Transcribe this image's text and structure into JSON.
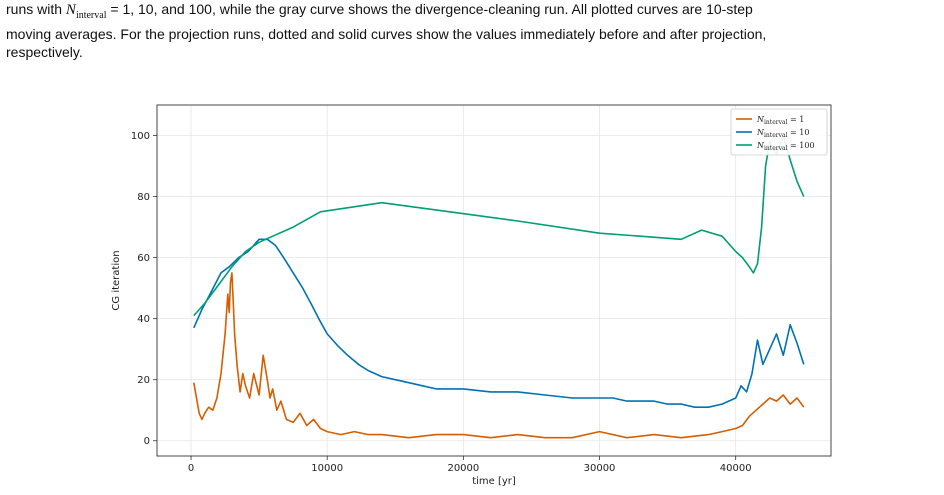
{
  "caption": {
    "line1_pre": "runs with ",
    "line1_sym": "N",
    "line1_sub": "interval",
    "line1_post": " = 1, 10, and 100, while the gray curve shows the divergence-cleaning run. All plotted curves are 10-step",
    "line2": "moving averages. For the projection runs, dotted and solid curves show the values immediately before and after projection,",
    "line3": "respectively."
  },
  "chart_data": {
    "type": "line",
    "xlabel": "time [yr]",
    "ylabel": "CG iteration",
    "xlim": [
      -2500,
      47000
    ],
    "ylim": [
      -5,
      110
    ],
    "xticks": [
      0,
      10000,
      20000,
      30000,
      40000
    ],
    "xtick_labels": [
      "0",
      "10000",
      "20000",
      "30000",
      "40000"
    ],
    "yticks": [
      0,
      20,
      40,
      60,
      80,
      100
    ],
    "ytick_labels": [
      "0",
      "20",
      "40",
      "60",
      "80",
      "100"
    ],
    "grid": true,
    "legend_position": "top-right",
    "series": [
      {
        "name": "N_interval = 1",
        "legend_sym": "N",
        "legend_sub": "interval",
        "legend_val": " = 1",
        "color": "#d55e00",
        "x": [
          200,
          400,
          600,
          800,
          1000,
          1300,
          1600,
          1900,
          2200,
          2500,
          2700,
          2800,
          2900,
          3000,
          3100,
          3200,
          3400,
          3600,
          3800,
          4000,
          4300,
          4600,
          5000,
          5300,
          5600,
          5800,
          6000,
          6300,
          6600,
          7000,
          7500,
          8000,
          8500,
          9000,
          9500,
          10000,
          11000,
          12000,
          13000,
          14000,
          16000,
          18000,
          20000,
          22000,
          24000,
          26000,
          28000,
          30000,
          32000,
          34000,
          36000,
          38000,
          39000,
          40000,
          40500,
          41000,
          41500,
          42000,
          42500,
          43000,
          43500,
          44000,
          44500,
          45000
        ],
        "y": [
          19,
          14,
          9,
          7,
          9,
          11,
          10,
          14,
          22,
          35,
          48,
          42,
          52,
          55,
          45,
          35,
          24,
          16,
          22,
          18,
          14,
          22,
          15,
          28,
          20,
          14,
          17,
          10,
          13,
          7,
          6,
          9,
          5,
          7,
          4,
          3,
          2,
          3,
          2,
          2,
          1,
          2,
          2,
          1,
          2,
          1,
          1,
          3,
          1,
          2,
          1,
          2,
          3,
          4,
          5,
          8,
          10,
          12,
          14,
          13,
          15,
          12,
          14,
          11
        ]
      },
      {
        "name": "N_interval = 10",
        "legend_sym": "N",
        "legend_sub": "interval",
        "legend_val": " = 10",
        "color": "#0072b2",
        "x": [
          200,
          800,
          1500,
          2200,
          2800,
          3500,
          4200,
          5000,
          5600,
          6200,
          6800,
          7500,
          8200,
          8800,
          9500,
          10000,
          10800,
          11500,
          12300,
          13000,
          14000,
          15000,
          16000,
          17000,
          18000,
          20000,
          22000,
          24000,
          26000,
          28000,
          29000,
          30000,
          31000,
          32000,
          33000,
          34000,
          35000,
          36000,
          37000,
          38000,
          39000,
          40000,
          40400,
          40800,
          41200,
          41600,
          42000,
          42500,
          43000,
          43500,
          44000,
          44500,
          45000
        ],
        "y": [
          37,
          43,
          49,
          55,
          57,
          60,
          62,
          66,
          66,
          64,
          60,
          55,
          50,
          45,
          39,
          35,
          31,
          28,
          25,
          23,
          21,
          20,
          19,
          18,
          17,
          17,
          16,
          16,
          15,
          14,
          14,
          14,
          14,
          13,
          13,
          13,
          12,
          12,
          11,
          11,
          12,
          14,
          18,
          16,
          22,
          33,
          25,
          30,
          35,
          28,
          38,
          32,
          25
        ]
      },
      {
        "name": "N_interval = 100",
        "legend_sym": "N",
        "legend_sub": "interval",
        "legend_val": " = 100",
        "color": "#009e73",
        "x": [
          200,
          1000,
          2000,
          3000,
          4000,
          5000,
          6000,
          7500,
          9500,
          14000,
          19000,
          24000,
          30000,
          33000,
          36000,
          37500,
          39000,
          40000,
          40500,
          41000,
          41300,
          41600,
          41900,
          42200,
          42500,
          43000,
          43500,
          44000,
          44500,
          45000
        ],
        "y": [
          41,
          45,
          51,
          57,
          62,
          65,
          67,
          70,
          75,
          78,
          75,
          72,
          68,
          67,
          66,
          69,
          67,
          62,
          60,
          57,
          55,
          58,
          70,
          90,
          98,
          94,
          100,
          92,
          85,
          80
        ]
      }
    ]
  }
}
